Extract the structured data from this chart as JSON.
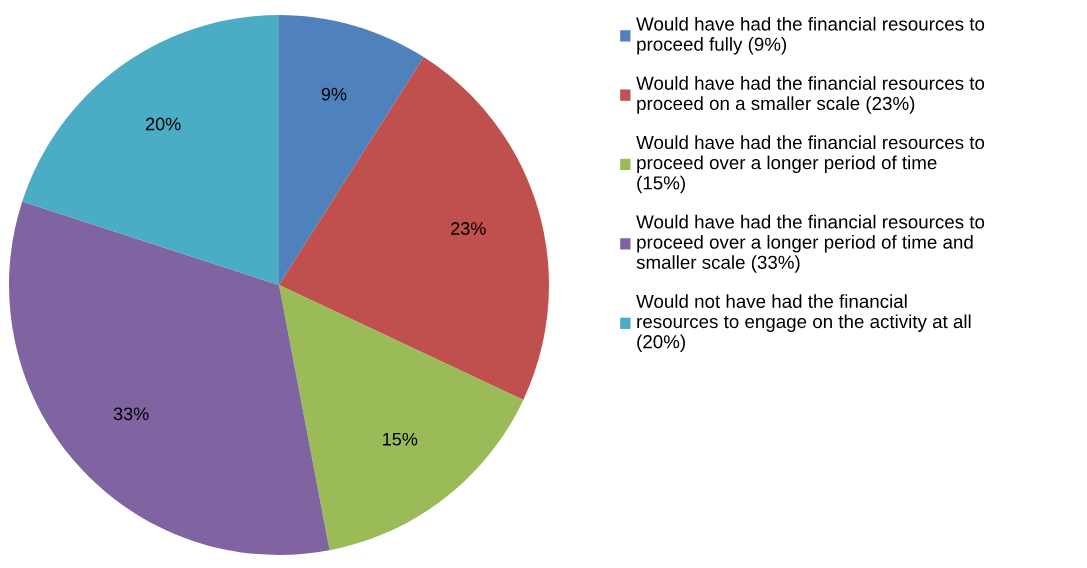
{
  "chart_data": {
    "type": "pie",
    "categories": [
      "Would have had the financial resources to\nproceed fully (9%)",
      "Would have had the financial resources to\nproceed on a smaller scale (23%)",
      "Would have had the financial resources to\nproceed over a longer period of time\n(15%)",
      "Would have had the financial resources to\nproceed over a longer period of time and\nsmaller scale (33%)",
      "Would not have had the financial\nresources to engage on the activity at all\n(20%)"
    ],
    "values": [
      9,
      23,
      15,
      33,
      20
    ],
    "value_labels": [
      "9%",
      "23%",
      "15%",
      "33%",
      "20%"
    ],
    "colors": [
      "#4f81bd",
      "#c0504d",
      "#9bbb59",
      "#8064a2",
      "#4bacc6"
    ],
    "legend": "right"
  }
}
